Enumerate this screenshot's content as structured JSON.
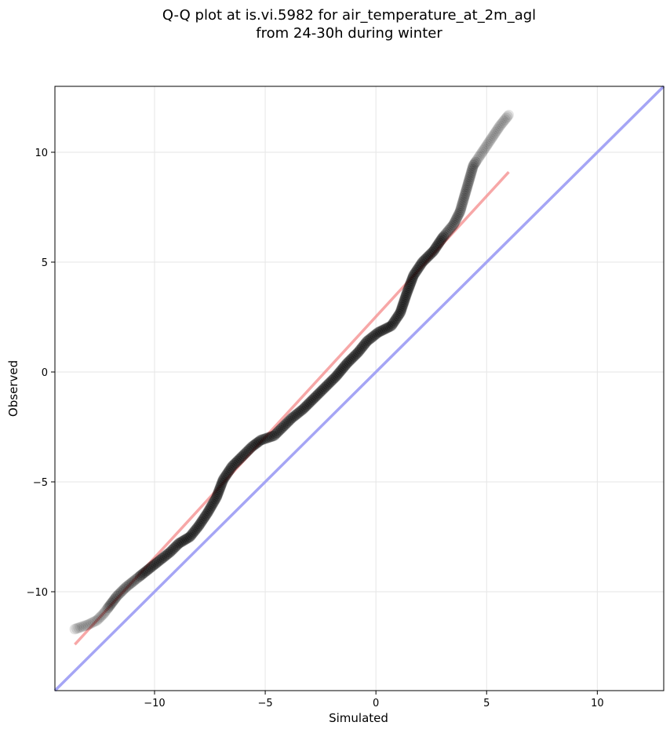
{
  "chart_data": {
    "type": "scatter",
    "title": [
      "Q-Q plot at is.vi.5982 for air_temperature_at_2m_agl",
      "from 24-30h during winter"
    ],
    "xlabel": "Simulated",
    "ylabel": "Observed",
    "xlim": [
      -14.5,
      13
    ],
    "ylim": [
      -14.5,
      13
    ],
    "xticks": [
      -10,
      -5,
      0,
      5,
      10
    ],
    "yticks": [
      -10,
      -5,
      0,
      5,
      10
    ],
    "xtick_labels": [
      "−10",
      "−5",
      "0",
      "5",
      "10"
    ],
    "ytick_labels": [
      "−10",
      "−5",
      "0",
      "5",
      "10"
    ],
    "grid": true,
    "series": [
      {
        "kind": "quantile-points",
        "color": "#000000",
        "points": [
          [
            -13.6,
            -11.7
          ],
          [
            -13.0,
            -11.5
          ],
          [
            -12.6,
            -11.3
          ],
          [
            -12.3,
            -11.0
          ],
          [
            -12.0,
            -10.6
          ],
          [
            -11.7,
            -10.2
          ],
          [
            -11.3,
            -9.8
          ],
          [
            -10.8,
            -9.4
          ],
          [
            -10.3,
            -9.0
          ],
          [
            -9.8,
            -8.6
          ],
          [
            -9.3,
            -8.2
          ],
          [
            -8.9,
            -7.8
          ],
          [
            -8.4,
            -7.5
          ],
          [
            -8.0,
            -7.0
          ],
          [
            -7.6,
            -6.4
          ],
          [
            -7.2,
            -5.7
          ],
          [
            -6.9,
            -4.9
          ],
          [
            -6.5,
            -4.3
          ],
          [
            -6.0,
            -3.8
          ],
          [
            -5.6,
            -3.4
          ],
          [
            -5.2,
            -3.1
          ],
          [
            -4.6,
            -2.9
          ],
          [
            -4.2,
            -2.5
          ],
          [
            -3.8,
            -2.1
          ],
          [
            -3.3,
            -1.7
          ],
          [
            -2.8,
            -1.2
          ],
          [
            -2.3,
            -0.7
          ],
          [
            -1.8,
            -0.2
          ],
          [
            -1.3,
            0.4
          ],
          [
            -0.8,
            0.9
          ],
          [
            -0.4,
            1.4
          ],
          [
            0.1,
            1.8
          ],
          [
            0.7,
            2.1
          ],
          [
            1.1,
            2.7
          ],
          [
            1.4,
            3.6
          ],
          [
            1.7,
            4.4
          ],
          [
            2.1,
            5.0
          ],
          [
            2.6,
            5.5
          ],
          [
            3.0,
            6.1
          ],
          [
            3.5,
            6.7
          ],
          [
            3.8,
            7.3
          ],
          [
            4.0,
            8.0
          ],
          [
            4.2,
            8.7
          ],
          [
            4.4,
            9.4
          ],
          [
            4.8,
            10.0
          ],
          [
            5.2,
            10.6
          ],
          [
            5.6,
            11.2
          ],
          [
            6.0,
            11.7
          ]
        ]
      },
      {
        "kind": "fit-line",
        "color": "#f48989",
        "x": [
          -13.6,
          6.0
        ],
        "y": [
          -12.4,
          9.1
        ]
      },
      {
        "kind": "identity-line",
        "color": "#a5a5f5",
        "x": [
          -14.5,
          13
        ],
        "y": [
          -14.5,
          13
        ]
      }
    ]
  }
}
